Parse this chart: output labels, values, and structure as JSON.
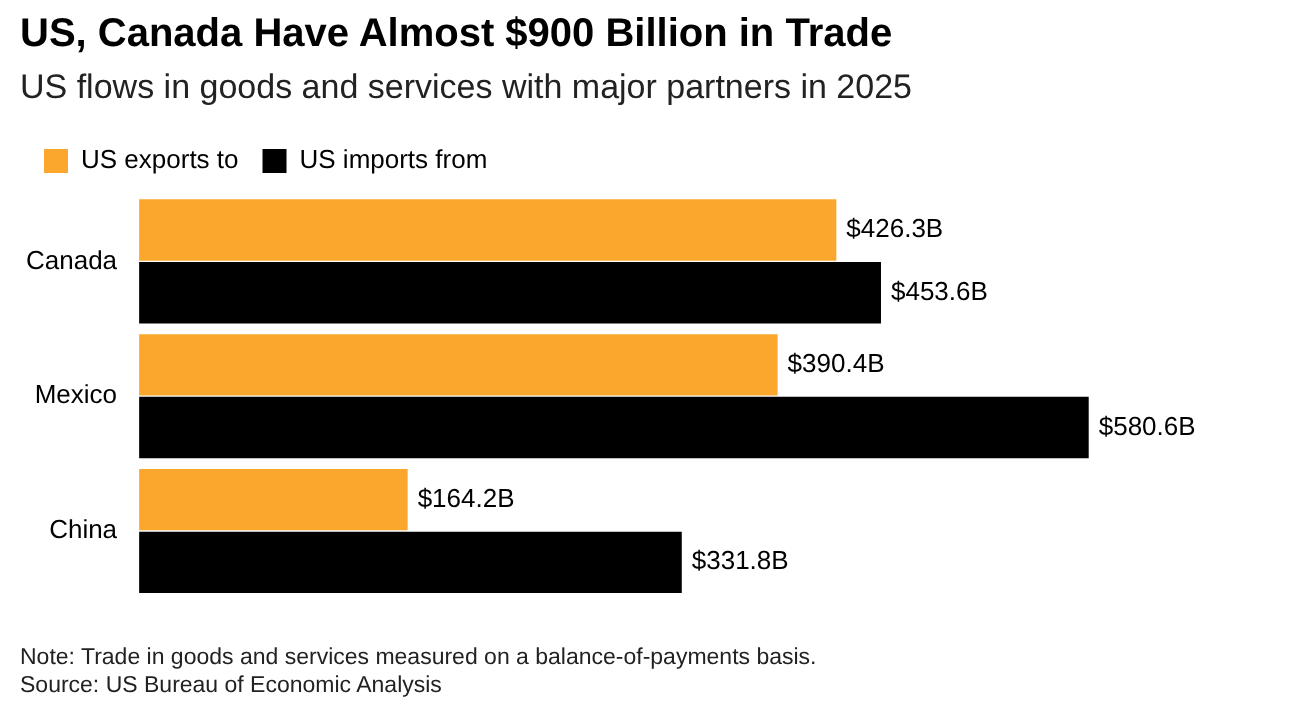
{
  "chart_data": {
    "type": "bar",
    "orientation": "horizontal",
    "title": "US, Canada Have Almost $900 Billion in Trade",
    "subtitle": "US flows in goods and services with major partners in 2025",
    "categories": [
      "Canada",
      "Mexico",
      "China"
    ],
    "series": [
      {
        "name": "US exports to",
        "color": "#fba62d",
        "values": [
          426.3,
          390.4,
          164.2
        ],
        "value_labels": [
          "$426.3B",
          "$390.4B",
          "$164.2B"
        ]
      },
      {
        "name": "US imports from",
        "color": "#000000",
        "values": [
          453.6,
          580.6,
          331.8
        ],
        "value_labels": [
          "$453.6B",
          "$580.6B",
          "$331.8B"
        ]
      }
    ],
    "legend": "top left",
    "tick_labels": "y",
    "annotations": [
      "Note: Trade in goods and services measured on a balance-of-payments basis.",
      "Source: US Bureau of Economic Analysis"
    ]
  }
}
